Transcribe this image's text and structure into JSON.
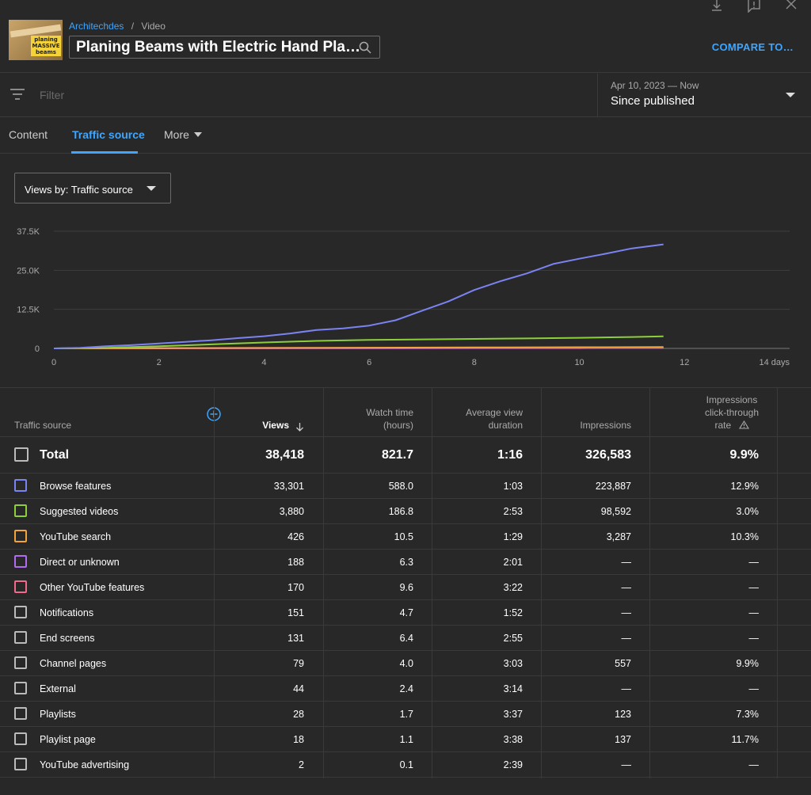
{
  "header": {
    "channel": "Architechdes",
    "separator": "/",
    "section": "Video",
    "video_title": "Planing Beams with Electric Hand Pla…",
    "compare_label": "COMPARE TO…",
    "thumbnail_text": "planing MASSIVE beams"
  },
  "filter": {
    "placeholder": "Filter",
    "date_range": "Apr 10, 2023 — Now",
    "period": "Since published"
  },
  "tabs": [
    {
      "label": "Content",
      "active": false
    },
    {
      "label": "Traffic source",
      "active": true
    },
    {
      "label": "More",
      "active": false
    }
  ],
  "views_by": "Views by: Traffic source",
  "chart_data": {
    "type": "line",
    "x_ticks": [
      "0",
      "2",
      "4",
      "6",
      "8",
      "10",
      "12",
      "14 days"
    ],
    "y_ticks": [
      "0",
      "12.5K",
      "25.0K",
      "37.5K"
    ],
    "xlim": [
      0,
      14
    ],
    "ylim": [
      0,
      37500
    ],
    "grid": true,
    "series": [
      {
        "name": "Browse features",
        "color": "#7b83f2",
        "x": [
          0,
          0.5,
          1,
          1.5,
          2,
          2.5,
          3,
          3.5,
          4,
          4.5,
          5,
          5.5,
          6,
          6.5,
          7,
          7.5,
          8,
          8.5,
          9,
          9.5,
          10,
          10.5,
          11,
          11.6
        ],
        "y": [
          0,
          200,
          700,
          1100,
          1600,
          2100,
          2600,
          3300,
          3900,
          4800,
          5900,
          6400,
          7300,
          9000,
          12000,
          15000,
          18700,
          21500,
          24000,
          27000,
          28700,
          30300,
          32000,
          33301
        ]
      },
      {
        "name": "Suggested videos",
        "color": "#8ccf3a",
        "x": [
          0,
          1,
          2,
          3,
          4,
          5,
          6,
          7,
          8,
          9,
          10,
          11,
          11.6
        ],
        "y": [
          0,
          200,
          700,
          1300,
          1900,
          2400,
          2700,
          2900,
          3050,
          3200,
          3400,
          3650,
          3880
        ]
      },
      {
        "name": "YouTube search",
        "color": "#f2a33a",
        "x": [
          0,
          5,
          8,
          10,
          11.6
        ],
        "y": [
          0,
          200,
          300,
          380,
          426
        ]
      },
      {
        "name": "Direct or unknown",
        "color": "#b26af2",
        "x": [
          0,
          5,
          8,
          10,
          11.6
        ],
        "y": [
          0,
          100,
          140,
          170,
          188
        ]
      },
      {
        "name": "Other YouTube features",
        "color": "#f26a8a",
        "x": [
          0,
          5,
          8,
          10,
          10.4,
          11.6
        ],
        "y": [
          0,
          60,
          90,
          110,
          170,
          170
        ]
      }
    ]
  },
  "table": {
    "headers": {
      "source": "Traffic source",
      "views": "Views",
      "watch_line1": "Watch time",
      "watch_line2": "(hours)",
      "avd_line1": "Average view",
      "avd_line2": "duration",
      "impressions": "Impressions",
      "ctr_line1": "Impressions",
      "ctr_line2": "click-through",
      "ctr_line3": "rate"
    },
    "total": {
      "name": "Total",
      "views": "38,418",
      "watch": "821.7",
      "avd": "1:16",
      "impressions": "326,583",
      "ctr": "9.9%"
    },
    "rows": [
      {
        "name": "Browse features",
        "views": "33,301",
        "watch": "588.0",
        "avd": "1:03",
        "impressions": "223,887",
        "ctr": "12.9%",
        "color": "#7b83f2"
      },
      {
        "name": "Suggested videos",
        "views": "3,880",
        "watch": "186.8",
        "avd": "2:53",
        "impressions": "98,592",
        "ctr": "3.0%",
        "color": "#8ccf3a"
      },
      {
        "name": "YouTube search",
        "views": "426",
        "watch": "10.5",
        "avd": "1:29",
        "impressions": "3,287",
        "ctr": "10.3%",
        "color": "#f2a33a"
      },
      {
        "name": "Direct or unknown",
        "views": "188",
        "watch": "6.3",
        "avd": "2:01",
        "impressions": "—",
        "ctr": "—",
        "color": "#b26af2"
      },
      {
        "name": "Other YouTube features",
        "views": "170",
        "watch": "9.6",
        "avd": "3:22",
        "impressions": "—",
        "ctr": "—",
        "color": "#f26a8a"
      },
      {
        "name": "Notifications",
        "views": "151",
        "watch": "4.7",
        "avd": "1:52",
        "impressions": "—",
        "ctr": "—",
        "color": "#bbbbbb"
      },
      {
        "name": "End screens",
        "views": "131",
        "watch": "6.4",
        "avd": "2:55",
        "impressions": "—",
        "ctr": "—",
        "color": "#bbbbbb"
      },
      {
        "name": "Channel pages",
        "views": "79",
        "watch": "4.0",
        "avd": "3:03",
        "impressions": "557",
        "ctr": "9.9%",
        "color": "#bbbbbb"
      },
      {
        "name": "External",
        "views": "44",
        "watch": "2.4",
        "avd": "3:14",
        "impressions": "—",
        "ctr": "—",
        "color": "#bbbbbb"
      },
      {
        "name": "Playlists",
        "views": "28",
        "watch": "1.7",
        "avd": "3:37",
        "impressions": "123",
        "ctr": "7.3%",
        "color": "#bbbbbb"
      },
      {
        "name": "Playlist page",
        "views": "18",
        "watch": "1.1",
        "avd": "3:38",
        "impressions": "137",
        "ctr": "11.7%",
        "color": "#bbbbbb"
      },
      {
        "name": "YouTube advertising",
        "views": "2",
        "watch": "0.1",
        "avd": "2:39",
        "impressions": "—",
        "ctr": "—",
        "color": "#bbbbbb"
      }
    ]
  }
}
